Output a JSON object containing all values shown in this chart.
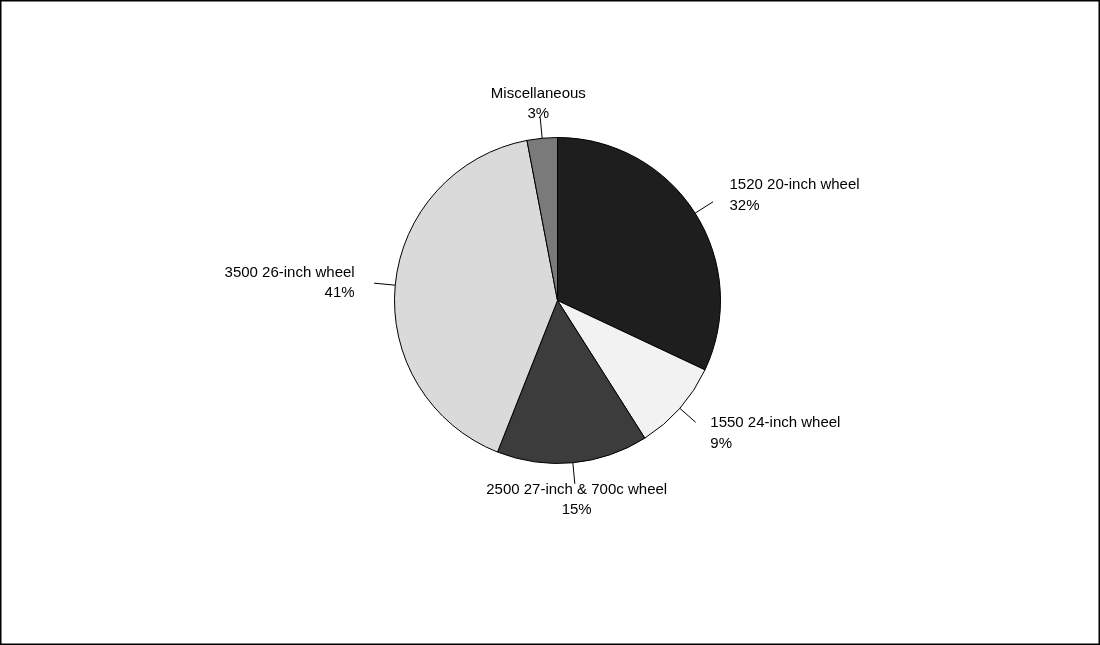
{
  "chart_data": {
    "type": "pie",
    "categories": [
      "1520 20-inch wheel",
      "1550 24-inch wheel",
      "2500 27-inch & 700c wheel",
      "3500 26-inch wheel",
      "Miscellaneous"
    ],
    "values": [
      32,
      9,
      15,
      41,
      3
    ],
    "value_labels": [
      "32%",
      "9%",
      "15%",
      "41%",
      "3%"
    ],
    "colors": [
      "#1e1e1e",
      "#f2f2f2",
      "#3c3c3c",
      "#dadada",
      "#7a7a7a"
    ],
    "legend": false
  }
}
